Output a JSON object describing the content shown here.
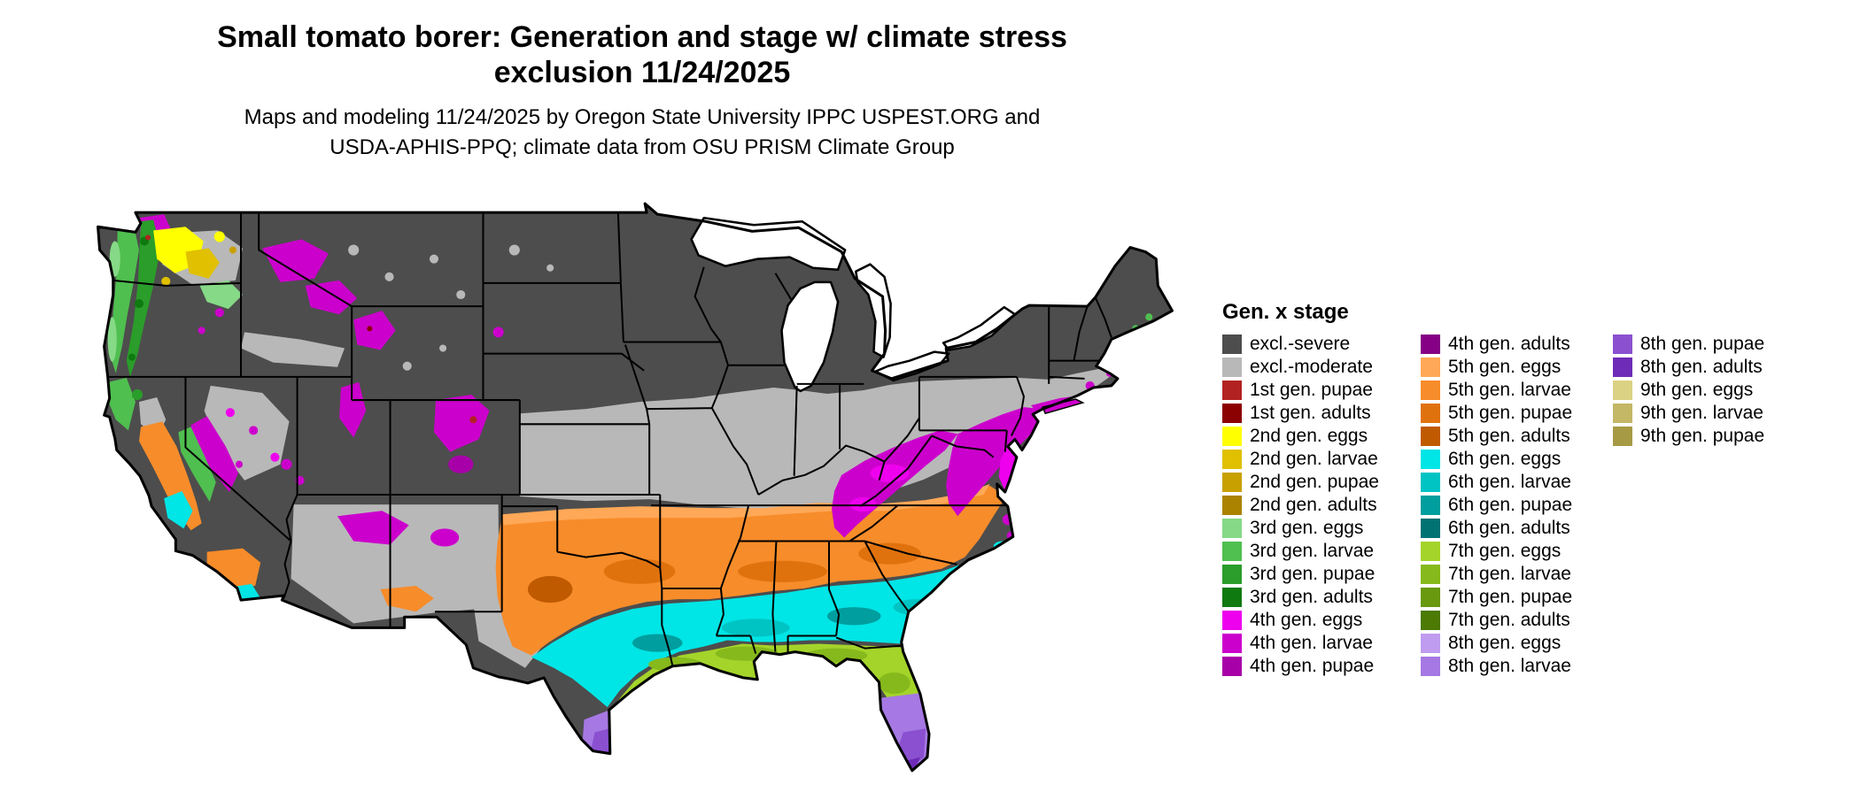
{
  "header": {
    "title_line1": "Small tomato borer: Generation and stage w/ climate stress",
    "title_line2": "exclusion 11/24/2025",
    "subtitle_line1": "Maps and modeling 11/24/2025 by Oregon State University IPPC USPEST.ORG and",
    "subtitle_line2": "USDA-APHIS-PPQ; climate data from OSU PRISM Climate Group"
  },
  "legend": {
    "title": "Gen. x stage",
    "columns": [
      {
        "items": [
          {
            "label": "excl.-severe",
            "color_key": "excl_severe"
          },
          {
            "label": "excl.-moderate",
            "color_key": "excl_moderate"
          },
          {
            "label": "1st gen. pupae",
            "color_key": "g1_pupae"
          },
          {
            "label": "1st gen. adults",
            "color_key": "g1_adults"
          },
          {
            "label": "2nd gen. eggs",
            "color_key": "g2_eggs"
          },
          {
            "label": "2nd gen. larvae",
            "color_key": "g2_larvae"
          },
          {
            "label": "2nd gen. pupae",
            "color_key": "g2_pupae"
          },
          {
            "label": "2nd gen. adults",
            "color_key": "g2_adults"
          },
          {
            "label": "3rd gen. eggs",
            "color_key": "g3_eggs"
          },
          {
            "label": "3rd gen. larvae",
            "color_key": "g3_larvae"
          },
          {
            "label": "3rd gen. pupae",
            "color_key": "g3_pupae"
          },
          {
            "label": "3rd gen. adults",
            "color_key": "g3_adults"
          },
          {
            "label": "4th gen. eggs",
            "color_key": "g4_eggs"
          },
          {
            "label": "4th gen. larvae",
            "color_key": "g4_larvae"
          },
          {
            "label": "4th gen. pupae",
            "color_key": "g4_pupae"
          }
        ]
      },
      {
        "items": [
          {
            "label": "4th gen. adults",
            "color_key": "g4_adults"
          },
          {
            "label": "5th gen. eggs",
            "color_key": "g5_eggs"
          },
          {
            "label": "5th gen. larvae",
            "color_key": "g5_larvae"
          },
          {
            "label": "5th gen. pupae",
            "color_key": "g5_pupae"
          },
          {
            "label": "5th gen. adults",
            "color_key": "g5_adults"
          },
          {
            "label": "6th gen. eggs",
            "color_key": "g6_eggs"
          },
          {
            "label": "6th gen. larvae",
            "color_key": "g6_larvae"
          },
          {
            "label": "6th gen. pupae",
            "color_key": "g6_pupae"
          },
          {
            "label": "6th gen. adults",
            "color_key": "g6_adults"
          },
          {
            "label": "7th gen. eggs",
            "color_key": "g7_eggs"
          },
          {
            "label": "7th gen. larvae",
            "color_key": "g7_larvae"
          },
          {
            "label": "7th gen. pupae",
            "color_key": "g7_pupae"
          },
          {
            "label": "7th gen. adults",
            "color_key": "g7_adults"
          },
          {
            "label": "8th gen. eggs",
            "color_key": "g8_eggs"
          },
          {
            "label": "8th gen. larvae",
            "color_key": "g8_larvae"
          }
        ]
      },
      {
        "items": [
          {
            "label": "8th gen. pupae",
            "color_key": "g8_pupae"
          },
          {
            "label": "8th gen. adults",
            "color_key": "g8_adults"
          },
          {
            "label": "9th gen. eggs",
            "color_key": "g9_eggs"
          },
          {
            "label": "9th gen. larvae",
            "color_key": "g9_larvae"
          },
          {
            "label": "9th gen. pupae",
            "color_key": "g9_pupae"
          }
        ]
      }
    ]
  },
  "colors": {
    "excl_severe": "#4d4d4d",
    "excl_moderate": "#b8b8b8",
    "g1_pupae": "#b22222",
    "g1_adults": "#8b0000",
    "g2_eggs": "#ffff00",
    "g2_larvae": "#e0c000",
    "g2_pupae": "#c8a000",
    "g2_adults": "#ac8300",
    "g3_eggs": "#86d986",
    "g3_larvae": "#4fbf4f",
    "g3_pupae": "#2a9d2a",
    "g3_adults": "#0f7a0f",
    "g4_eggs": "#ee00ee",
    "g4_larvae": "#cc00cc",
    "g4_pupae": "#a800a8",
    "g4_adults": "#850085",
    "g5_eggs": "#ffa857",
    "g5_larvae": "#f78c2a",
    "g5_pupae": "#e0720e",
    "g5_adults": "#c05a00",
    "g6_eggs": "#00e5e5",
    "g6_larvae": "#00c4c4",
    "g6_pupae": "#009e9e",
    "g6_adults": "#007272",
    "g7_eggs": "#a4d42a",
    "g7_larvae": "#86b91c",
    "g7_pupae": "#68990e",
    "g7_adults": "#4c7a04",
    "g8_eggs": "#bf9cf0",
    "g8_larvae": "#a678e3",
    "g8_pupae": "#8a50d0",
    "g8_adults": "#6e2bb8",
    "g9_eggs": "#dcd284",
    "g9_larvae": "#c4b766",
    "g9_pupae": "#a79a45",
    "water": "#ffffff"
  }
}
